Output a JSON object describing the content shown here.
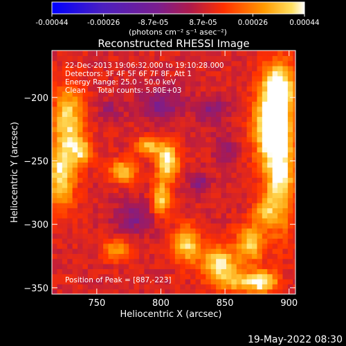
{
  "chart_data": {
    "type": "heatmap",
    "title": "Reconstructed RHESSI Image",
    "xlabel": "Heliocentric X (arcsec)",
    "ylabel": "Heliocentric Y (arcsec)",
    "x_range": [
      715,
      905
    ],
    "y_range": [
      -355,
      -163
    ],
    "x_ticks": [
      750,
      800,
      850,
      900
    ],
    "y_ticks": [
      -200,
      -250,
      -300,
      -350
    ],
    "x_tick_labels": [
      "750",
      "800",
      "850",
      "900"
    ],
    "y_tick_labels": [
      "−200",
      "−250",
      "−300",
      "−350"
    ],
    "colorbar": {
      "range": [
        -0.00044,
        0.00044
      ],
      "ticks": [
        -0.00044,
        -0.00026,
        -8.7e-05,
        8.7e-05,
        0.00026,
        0.00044
      ],
      "tick_labels": [
        "-0.00044",
        "-0.00026",
        "-8.7e-05",
        "8.7e-05",
        "0.00026",
        "0.00044"
      ],
      "units_label": "(photons cm⁻² s⁻¹ asec⁻²)",
      "colors": [
        "#0000ff",
        "#6a1fa8",
        "#b01a4a",
        "#ff3000",
        "#ff9a00",
        "#ffffff"
      ]
    },
    "annotations": [
      "22-Dec-2013 19:06:32.000 to 19:10:28.000",
      "Detectors: 3F 4F 5F 6F 7F 8F, Att 1",
      "Energy Range: 25.0 - 50.0 keV",
      "Clean     Total counts: 5.80E+03"
    ],
    "peak_label": "Position of Peak = [887,-223]",
    "peak": [
      887,
      -223
    ],
    "grid": false,
    "hot_regions": [
      {
        "x": 887,
        "y": -223,
        "sx": 10,
        "sy": 20,
        "amp": 0.00042
      },
      {
        "x": 892,
        "y": -190,
        "sx": 9,
        "sy": 14,
        "amp": 0.00034
      },
      {
        "x": 893,
        "y": -265,
        "sx": 8,
        "sy": 28,
        "amp": 0.00032
      },
      {
        "x": 728,
        "y": -215,
        "sx": 8,
        "sy": 18,
        "amp": 0.00028
      },
      {
        "x": 722,
        "y": -260,
        "sx": 8,
        "sy": 20,
        "amp": 0.0003
      },
      {
        "x": 738,
        "y": -242,
        "sx": 6,
        "sy": 8,
        "amp": 0.00024
      },
      {
        "x": 805,
        "y": -250,
        "sx": 6,
        "sy": 10,
        "amp": 0.00036
      },
      {
        "x": 800,
        "y": -280,
        "sx": 5,
        "sy": 10,
        "amp": 0.00028
      },
      {
        "x": 790,
        "y": -238,
        "sx": 7,
        "sy": 5,
        "amp": 0.00026
      },
      {
        "x": 770,
        "y": -258,
        "sx": 7,
        "sy": 6,
        "amp": 0.00028
      },
      {
        "x": 765,
        "y": -320,
        "sx": 8,
        "sy": 6,
        "amp": 0.0002
      },
      {
        "x": 820,
        "y": -315,
        "sx": 7,
        "sy": 10,
        "amp": 0.0003
      },
      {
        "x": 845,
        "y": -330,
        "sx": 10,
        "sy": 9,
        "amp": 0.00031
      },
      {
        "x": 870,
        "y": -315,
        "sx": 8,
        "sy": 10,
        "amp": 0.00028
      },
      {
        "x": 860,
        "y": -345,
        "sx": 12,
        "sy": 6,
        "amp": 0.00024
      },
      {
        "x": 880,
        "y": -345,
        "sx": 8,
        "sy": 6,
        "amp": 0.0003
      },
      {
        "x": 880,
        "y": -290,
        "sx": 6,
        "sy": 8,
        "amp": 0.0002
      }
    ],
    "cold_regions": [
      {
        "x": 800,
        "y": -205,
        "sx": 12,
        "sy": 9,
        "amp": 0.00016
      },
      {
        "x": 840,
        "y": -210,
        "sx": 8,
        "sy": 7,
        "amp": 0.00014
      },
      {
        "x": 780,
        "y": -295,
        "sx": 12,
        "sy": 9,
        "amp": 0.00014
      },
      {
        "x": 830,
        "y": -268,
        "sx": 6,
        "sy": 6,
        "amp": 0.00014
      },
      {
        "x": 850,
        "y": -240,
        "sx": 6,
        "sy": 8,
        "amp": 0.00012
      },
      {
        "x": 760,
        "y": -210,
        "sx": 6,
        "sy": 6,
        "amp": 0.0001
      }
    ],
    "baseline": 0.0001
  },
  "footer": {
    "date": "19-May-2022 08:30"
  }
}
